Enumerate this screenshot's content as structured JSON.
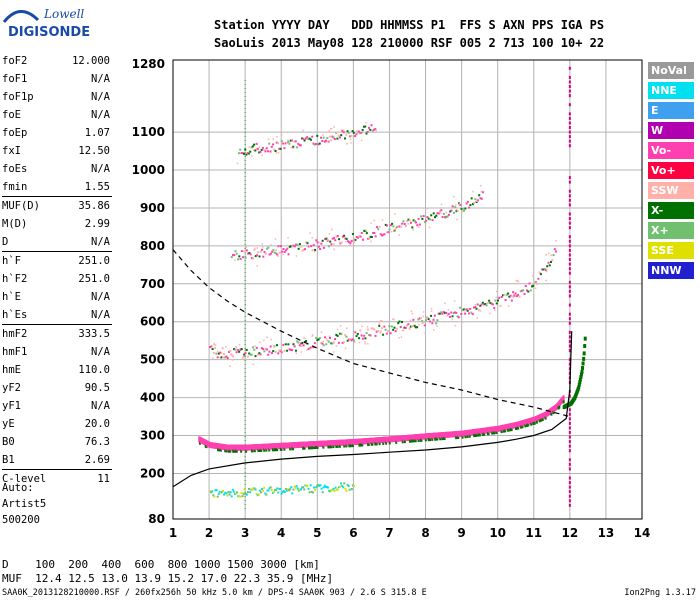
{
  "logo": {
    "line1": "Lowell",
    "line2": "DIGISONDE"
  },
  "header": {
    "columns": "Station YYYY DAY   DDD HHMMSS P1  FFS S AXN PPS IGA PS",
    "values": "SaoLuis 2013 May08 128 210000 RSF 005 2 713 100 10+ 22"
  },
  "param_groups": [
    [
      {
        "label": "foF2",
        "value": "12.000"
      },
      {
        "label": "foF1",
        "value": "N/A"
      },
      {
        "label": "foF1p",
        "value": "N/A"
      },
      {
        "label": "foE",
        "value": "N/A"
      },
      {
        "label": "foEp",
        "value": "1.07"
      },
      {
        "label": "fxI",
        "value": "12.50"
      },
      {
        "label": "foEs",
        "value": "N/A"
      },
      {
        "label": "fmin",
        "value": "1.55"
      }
    ],
    [
      {
        "label": "MUF(D)",
        "value": "35.86"
      },
      {
        "label": "M(D)",
        "value": "2.99"
      },
      {
        "label": "D",
        "value": "N/A"
      }
    ],
    [
      {
        "label": "h`F",
        "value": "251.0"
      },
      {
        "label": "h`F2",
        "value": "251.0"
      },
      {
        "label": "h`E",
        "value": "N/A"
      },
      {
        "label": "h`Es",
        "value": "N/A"
      }
    ],
    [
      {
        "label": "hmF2",
        "value": "333.5"
      },
      {
        "label": "hmF1",
        "value": "N/A"
      },
      {
        "label": "hmE",
        "value": "110.0"
      },
      {
        "label": "yF2",
        "value": "90.5"
      },
      {
        "label": "yF1",
        "value": "N/A"
      },
      {
        "label": "yE",
        "value": "20.0"
      },
      {
        "label": "B0",
        "value": "76.3"
      },
      {
        "label": "B1",
        "value": "2.69"
      }
    ],
    [
      {
        "label": "C-level",
        "value": "11"
      }
    ]
  ],
  "auto": {
    "line1": "Auto:",
    "line2": "Artist5",
    "line3": "500200"
  },
  "legend": [
    {
      "label": "NoVal",
      "color": "#999999"
    },
    {
      "label": "NNE",
      "color": "#00e0f0"
    },
    {
      "label": "E",
      "color": "#40a0f0"
    },
    {
      "label": "W",
      "color": "#b000b0"
    },
    {
      "label": "Vo-",
      "color": "#ff40b0"
    },
    {
      "label": "Vo+",
      "color": "#ff0040"
    },
    {
      "label": "SSW",
      "color": "#ffb0a8"
    },
    {
      "label": "X-",
      "color": "#007000"
    },
    {
      "label": "X+",
      "color": "#70c070"
    },
    {
      "label": "SSE",
      "color": "#e0e000"
    },
    {
      "label": "NNW",
      "color": "#2020d0"
    }
  ],
  "distance_line": "D    100  200  400  600  800 1000 1500 3000 [km]",
  "muf_line": "MUF  12.4 12.5 13.0 13.9 15.2 17.0 22.3 35.9 [MHz]",
  "footer": "SAA0K_2013128210000.RSF / 260fx256h 50 kHz 5.0 km / DPS-4 SAA0K 903 / 2.6 S 315.8 E",
  "version": "Ion2Png 1.3.17",
  "chart_data": {
    "type": "scatter",
    "xlim": [
      1,
      14
    ],
    "ylim": [
      80,
      1290
    ],
    "xticks": [
      1,
      2,
      3,
      4,
      5,
      6,
      7,
      8,
      9,
      10,
      11,
      12,
      13,
      14
    ],
    "yticks": [
      80,
      200,
      300,
      400,
      500,
      600,
      700,
      800,
      900,
      1000,
      1100,
      1280
    ],
    "grid": true,
    "axis_colors": {
      "grid": "#b4b4b4",
      "dotted": "#00aa00"
    },
    "cutoff_line": {
      "x": 12.0,
      "color": "#d00080"
    },
    "true_height_profile": {
      "x": [
        1.0,
        1.5,
        2.0,
        3.0,
        4.0,
        5.0,
        6.0,
        7.0,
        8.0,
        9.0,
        10.0,
        10.5,
        11.0,
        11.5,
        11.9,
        12.0,
        12.05
      ],
      "y": [
        165,
        195,
        212,
        228,
        238,
        245,
        250,
        256,
        262,
        270,
        282,
        290,
        300,
        316,
        345,
        420,
        575
      ]
    },
    "muf_curve": {
      "x": [
        1.0,
        1.5,
        2.0,
        2.5,
        3.0,
        4.0,
        5.0,
        6.0,
        7.0,
        8.0,
        9.0,
        10.0,
        11.0,
        12.0
      ],
      "y": [
        790,
        735,
        690,
        655,
        625,
        575,
        530,
        490,
        465,
        440,
        420,
        395,
        375,
        350
      ]
    },
    "o_trace": {
      "x": [
        1.7,
        2.0,
        2.5,
        3.0,
        4.0,
        5.0,
        6.0,
        7.0,
        8.0,
        9.0,
        10.0,
        10.5,
        11.0,
        11.3,
        11.6,
        11.8
      ],
      "y": [
        290,
        275,
        268,
        268,
        273,
        278,
        283,
        290,
        298,
        305,
        318,
        328,
        342,
        355,
        375,
        398
      ]
    },
    "x_trace": {
      "x": [
        11.8,
        12.0,
        12.1,
        12.2,
        12.3,
        12.35,
        12.4
      ],
      "y": [
        375,
        385,
        400,
        425,
        470,
        510,
        575
      ]
    },
    "multiples": [
      {
        "x": [
          2.0,
          2.5,
          3.0,
          4.0,
          5.0,
          6.0,
          7.0,
          8.0,
          9.0,
          10.0,
          11.0,
          11.6
        ],
        "y": [
          525,
          518,
          520,
          532,
          548,
          565,
          585,
          605,
          628,
          655,
          700,
          790
        ]
      },
      {
        "x": [
          2.6,
          3.0,
          4.0,
          5.0,
          6.0,
          7.0,
          8.0,
          9.0,
          9.6
        ],
        "y": [
          775,
          780,
          790,
          805,
          825,
          848,
          875,
          905,
          940
        ]
      },
      {
        "x": [
          2.8,
          3.0,
          4.0,
          5.0,
          6.0,
          6.6
        ],
        "y": [
          1050,
          1055,
          1068,
          1080,
          1100,
          1120
        ]
      }
    ],
    "es_trace": {
      "x": [
        2.0,
        2.5,
        3.0,
        3.5,
        4.0,
        5.0,
        6.0
      ],
      "y": [
        148,
        150,
        152,
        155,
        158,
        162,
        168
      ]
    }
  }
}
